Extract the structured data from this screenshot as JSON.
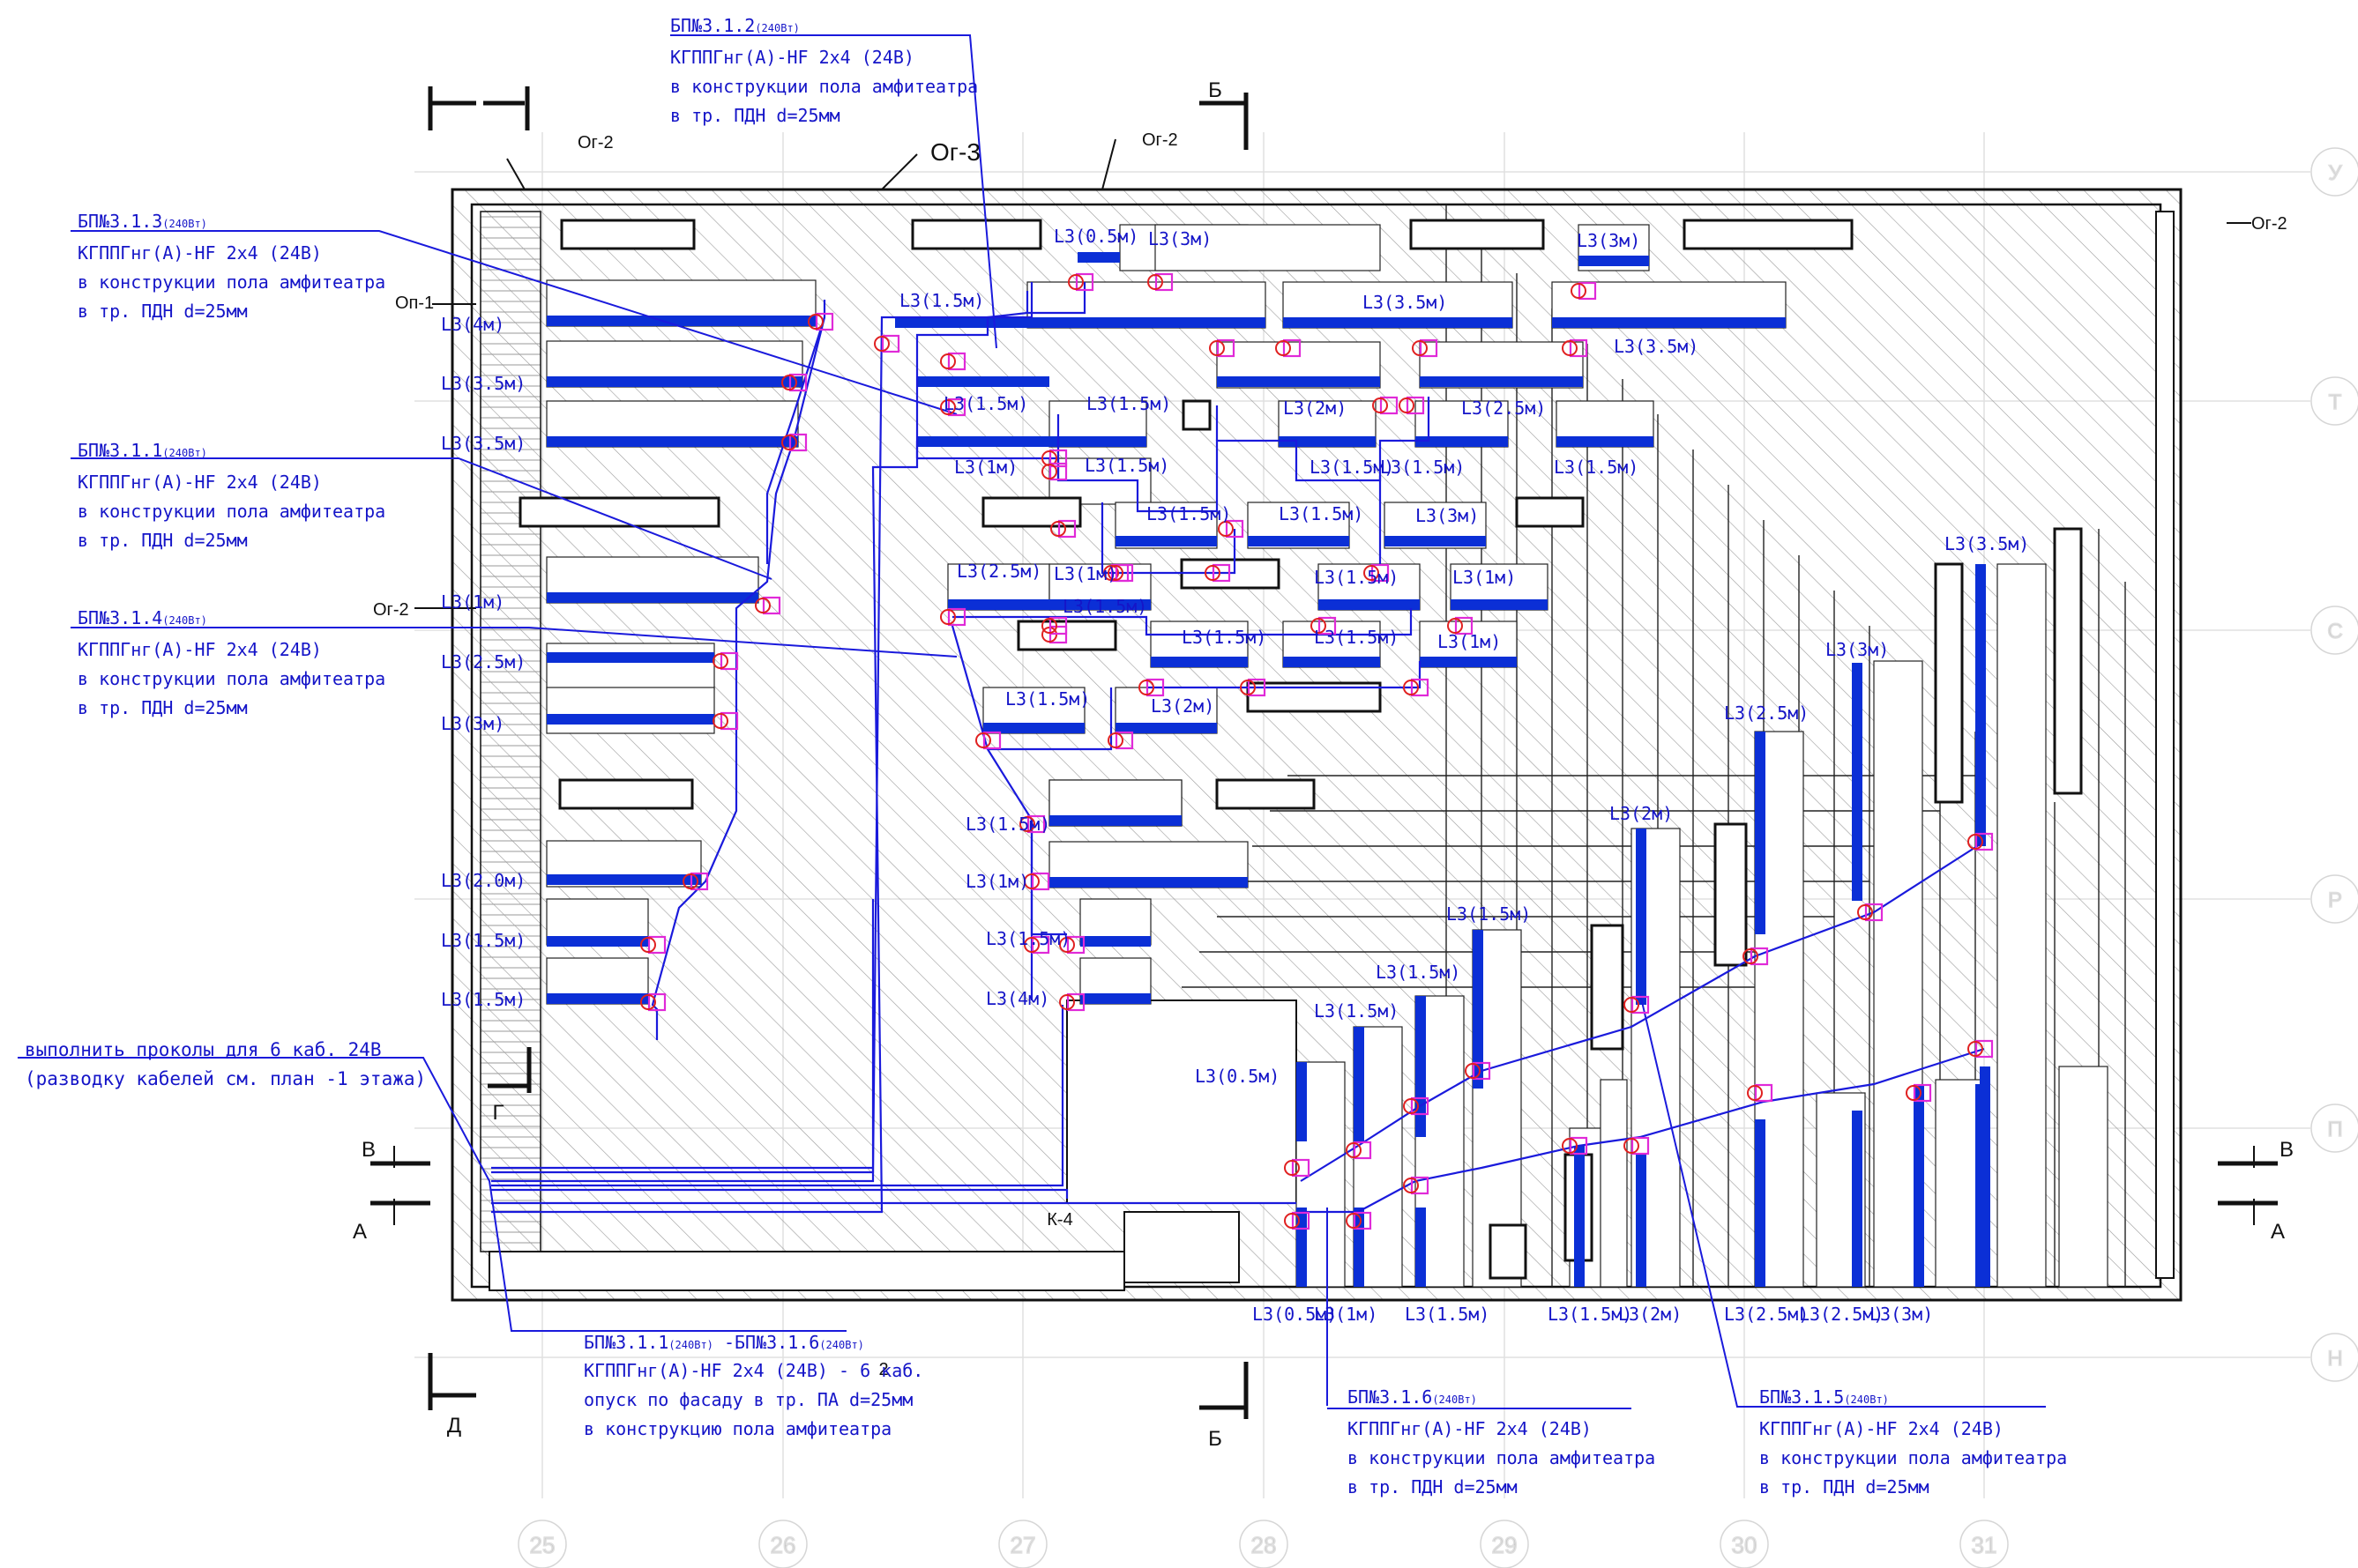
{
  "colors": {
    "cable": "#1a1adc",
    "heater": "#0b2fd6",
    "marker": "#e02ad8",
    "junction": "#e02020",
    "wall": "#111111",
    "hatch": "#8a8a8a",
    "grid": "#cfcfcf"
  },
  "grid_axes": {
    "bottom": [
      "25",
      "26",
      "27",
      "28",
      "29",
      "30",
      "31"
    ],
    "right": [
      "У",
      "Т",
      "С",
      "Р",
      "П",
      "Н"
    ]
  },
  "section_marks": {
    "top_b": "Б",
    "bottom_b": "Б",
    "left_v": "В",
    "left_a": "А",
    "right_v": "В",
    "right_a": "А",
    "g": "Г",
    "d": "Д",
    "page_no": "2",
    "k4": "К-4"
  },
  "frame_labels": {
    "og2_a": "Ог-2",
    "og2_b": "Ог-2",
    "og2_right": "Ог-2",
    "og2_left": "Ог-2",
    "og3": "Ог-3",
    "op1": "Оп-1"
  },
  "callouts": {
    "c312": {
      "title": "БП№3.1.2",
      "sub": "(240Вт)",
      "lines": [
        "КГППГнг(А)-HF 2х4 (24В)",
        "в конструкции пола амфитеатра",
        "в тр. ПДН d=25мм"
      ]
    },
    "c313": {
      "title": "БП№3.1.3",
      "sub": "(240Вт)",
      "lines": [
        "КГППГнг(А)-HF 2х4 (24В)",
        "в конструкции пола амфитеатра",
        "в тр. ПДН d=25мм"
      ]
    },
    "c311": {
      "title": "БП№3.1.1",
      "sub": "(240Вт)",
      "lines": [
        "КГППГнг(А)-HF 2х4 (24В)",
        "в конструкции пола амфитеатра",
        "в тр. ПДН d=25мм"
      ]
    },
    "c314": {
      "title": "БП№3.1.4",
      "sub": "(240Вт)",
      "lines": [
        "КГППГнг(А)-HF 2х4 (24В)",
        "в конструкции пола амфитеатра",
        "в тр. ПДН d=25мм"
      ]
    },
    "c316": {
      "title": "БП№3.1.6",
      "sub": "(240Вт)",
      "lines": [
        "КГППГнг(А)-HF 2х4 (24В)",
        "в конструкции пола амфитеатра",
        "в тр. ПДН d=25мм"
      ]
    },
    "c315": {
      "title": "БП№3.1.5",
      "sub": "(240Вт)",
      "lines": [
        "КГППГнг(А)-HF 2х4 (24В)",
        "в конструкции пола амфитеатра",
        "в тр. ПДН d=25мм"
      ]
    },
    "cmain": {
      "title_a": "БП№3.1.1",
      "sub_a": "(240Вт)",
      "dash": " -",
      "title_b": "БП№3.1.6",
      "sub_b": "(240Вт)",
      "lines": [
        "КГППГнг(А)-HF 2х4 (24В) - 6 каб.",
        "опуск по фасаду в тр. ПА d=25мм",
        "в конструкцию пола амфитеатра"
      ]
    },
    "note": {
      "lines": [
        "выполнить проколы для 6 каб. 24В",
        "(разводку кабелей см. план -1 этажа)"
      ]
    }
  },
  "heater_labels": [
    "L3(0.5м)",
    "L3(3м)",
    "L3(3м)",
    "L3(1.5м)",
    "L3(3.5м)",
    "L3(4м)",
    "L3(3.5м)",
    "L3(3.5м)",
    "L3(3.5м)",
    "L3(1.5м)",
    "L3(1.5м)",
    "L3(2м)",
    "L3(2.5м)",
    "L3(1.5м)",
    "L3(1.5м)",
    "L3(1.5м)",
    "L3(1.5м)",
    "L3(1м)",
    "L3(1.5м)",
    "L3(1.5м)",
    "L3(3м)",
    "L3(2.5м)",
    "L3(1м)",
    "L3(1.5м)",
    "L3(1м)",
    "L3(1м)",
    "L3(2.5м)",
    "L3(1.5м)",
    "L3(1.5м)",
    "L3(1.5м)",
    "L3(1м)",
    "L3(1.5м)",
    "L3(2м)",
    "L3(3м)",
    "L3(2.0м)",
    "L3(1.5м)",
    "L3(1.5м)",
    "L3(1.5м)",
    "L3(1м)",
    "L3(1.5м)",
    "L3(4м)",
    "L3(3.5м)",
    "L3(3м)",
    "L3(2.5м)",
    "L3(2м)",
    "L3(1.5м)",
    "L3(1.5м)",
    "L3(1.5м)",
    "L3(0.5м)",
    "L3(0.5м)",
    "L3(1м)",
    "L3(1.5м)",
    "L3(1.5м)",
    "L3(2м)",
    "L3(2.5м)",
    "L3(2.5м)",
    "L3(3м)"
  ]
}
